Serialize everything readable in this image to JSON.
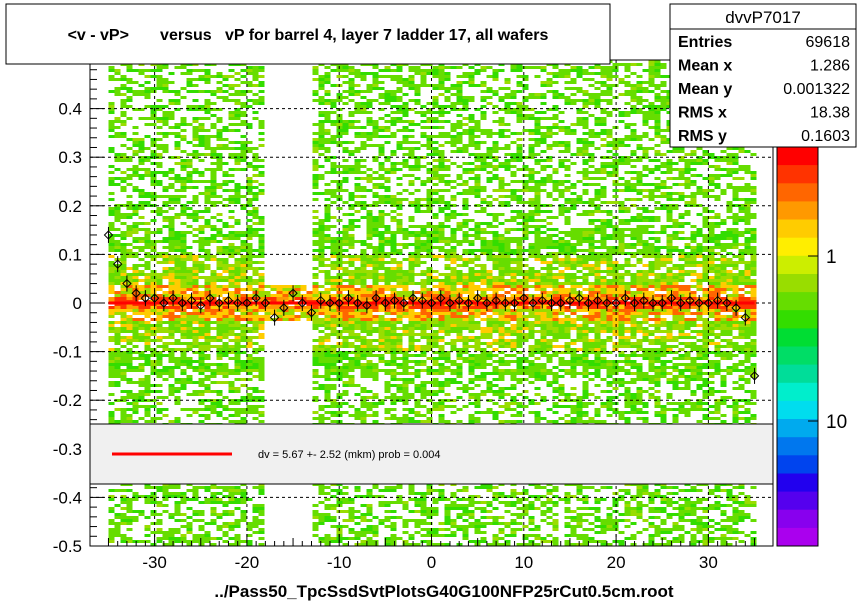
{
  "title": "<v - vP>       versus   vP for barrel 4, layer 7 ladder 17, all wafers",
  "stats": {
    "name": "dvvP7017",
    "rows": [
      {
        "label": "Entries",
        "value": "69618"
      },
      {
        "label": "Mean x",
        "value": "1.286"
      },
      {
        "label": "Mean y",
        "value": "0.001322"
      },
      {
        "label": "RMS x",
        "value": "18.38"
      },
      {
        "label": "RMS y",
        "value": "0.1603"
      }
    ]
  },
  "legend": {
    "text": "dv =     5.67  +-  2.52 (mkm) prob = 0.004",
    "line_color": "#ff0000"
  },
  "xlabel": "../Pass50_TpcSsdSvtPlotsG40G100NFP25rCut0.5cm.root",
  "colorbar": {
    "tick_labels": [
      "1",
      "10"
    ],
    "tick_values": [
      1,
      10
    ],
    "partial_label": "0",
    "colors": [
      "#ff0000",
      "#ff3300",
      "#ff6600",
      "#ff9900",
      "#ffcc00",
      "#ffee00",
      "#ccee00",
      "#99dd00",
      "#66dd00",
      "#33dd00",
      "#00dd33",
      "#00dd66",
      "#00dd99",
      "#00eecc",
      "#00ddee",
      "#00aaee",
      "#0077ee",
      "#0044ee",
      "#2200ee",
      "#5500ee",
      "#8800ee",
      "#aa00ee"
    ]
  },
  "chart_data": {
    "type": "heatmap",
    "title": "<v - vP>       versus   vP for barrel 4, layer 7 ladder 17, all wafers",
    "xlabel": "../Pass50_TpcSsdSvtPlotsG40G100NFP25rCut0.5cm.root",
    "ylabel": "",
    "xlim": [
      -37,
      37
    ],
    "ylim": [
      -0.5,
      0.5
    ],
    "x_ticks": [
      -30,
      -20,
      -10,
      0,
      10,
      20,
      30
    ],
    "y_ticks": [
      -0.5,
      -0.4,
      -0.3,
      -0.2,
      -0.1,
      0,
      0.1,
      0.2,
      0.3,
      0.4
    ],
    "y_tick_labels": [
      "-0.5",
      "-0.4",
      "-0.3",
      "-0.2",
      "-0.1",
      "0",
      "0.1",
      "0.2",
      "0.3",
      "0.4"
    ],
    "grid": true,
    "fit_line": {
      "y": 0.0,
      "x_range": [
        -35,
        35
      ],
      "color": "#ff0000"
    },
    "data_x_range": [
      -35,
      35
    ],
    "gap_x_range": [
      -18,
      -13
    ],
    "profile": {
      "x": [
        -35,
        -34,
        -33,
        -32,
        -31,
        -30,
        -29,
        -28,
        -27,
        -26,
        -25,
        -24,
        -23,
        -22,
        -21,
        -20,
        -19,
        -18,
        -17,
        -16,
        -15,
        -14,
        -13,
        -12,
        -11,
        -10,
        -9,
        -8,
        -7,
        -6,
        -5,
        -4,
        -3,
        -2,
        -1,
        0,
        1,
        2,
        3,
        4,
        5,
        6,
        7,
        8,
        9,
        10,
        11,
        12,
        13,
        14,
        15,
        16,
        17,
        18,
        19,
        20,
        21,
        22,
        23,
        24,
        25,
        26,
        27,
        28,
        29,
        30,
        31,
        32,
        33,
        34,
        35
      ],
      "y": [
        0.14,
        0.08,
        0.04,
        0.02,
        0.01,
        0.01,
        0.0,
        0.01,
        0.0,
        0.005,
        -0.005,
        0.01,
        0.0,
        0.005,
        0.0,
        0.0,
        0.01,
        0.0,
        -0.03,
        -0.01,
        0.02,
        0.0,
        -0.02,
        0.005,
        0.0,
        0.0,
        0.01,
        0.0,
        -0.005,
        0.01,
        0.0,
        0.005,
        0.0,
        0.01,
        0.005,
        0.0,
        0.01,
        0.0,
        0.005,
        0.0,
        0.01,
        0.0,
        0.005,
        0.0,
        0.0,
        0.01,
        0.0,
        0.005,
        0.0,
        0.0,
        0.005,
        0.01,
        0.0,
        0.005,
        0.0,
        0.0,
        0.01,
        0.0,
        0.005,
        0.0,
        0.0,
        0.01,
        0.0,
        0.005,
        0.0,
        0.0,
        0.005,
        0.0,
        -0.01,
        -0.03,
        -0.15
      ]
    }
  }
}
